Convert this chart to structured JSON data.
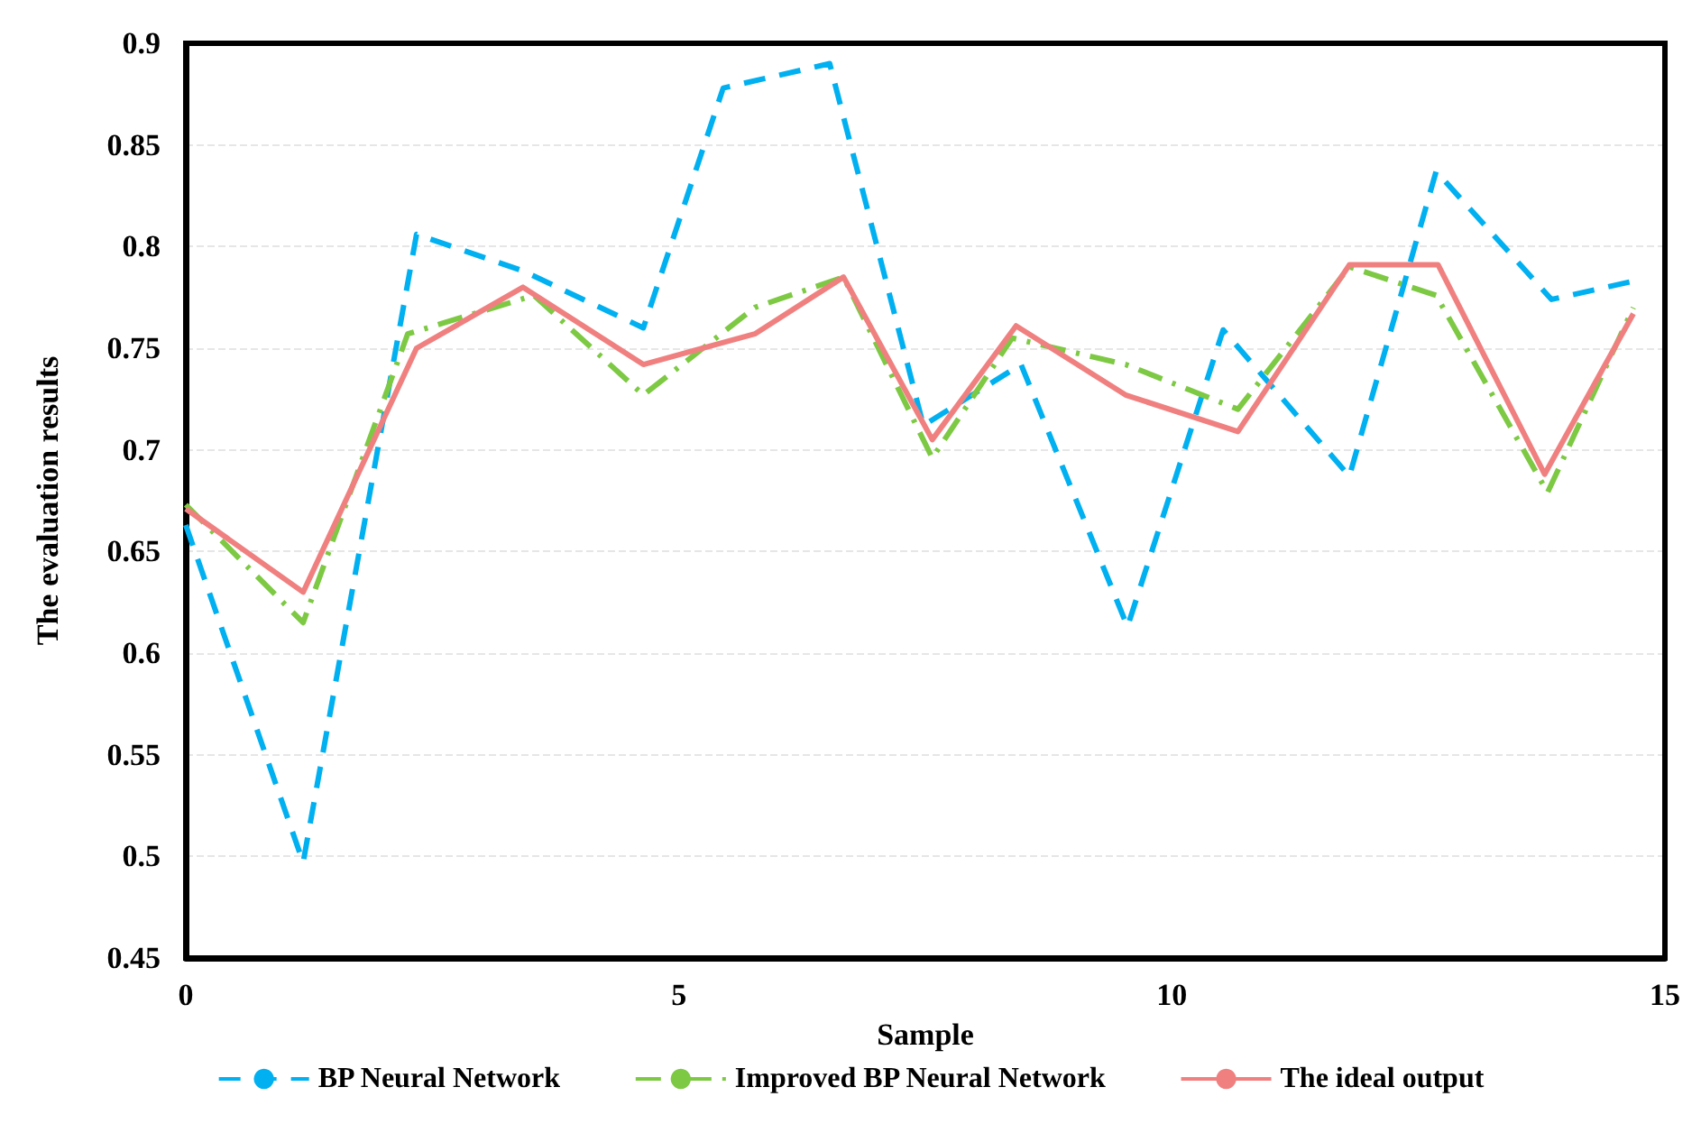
{
  "chart_data": {
    "type": "line",
    "xlabel": "Sample",
    "ylabel": "The evaluation results",
    "xlim": [
      0,
      15
    ],
    "xticks": [
      0,
      5,
      10,
      15
    ],
    "ylim": [
      0.45,
      0.9
    ],
    "yticks": [
      0.45,
      0.5,
      0.55,
      0.6,
      0.65,
      0.7,
      0.75,
      0.8,
      0.85,
      0.9
    ],
    "grid": "y",
    "legend": "bottom",
    "marker": "none",
    "series": [
      {
        "name": "BP Neural Network",
        "color": "#00b0f0",
        "line_style": "dashed",
        "x": [
          0,
          1.19,
          2.34,
          3.42,
          4.64,
          5.45,
          6.53,
          7.48,
          8.47,
          9.55,
          10.52,
          11.8,
          12.68,
          13.85,
          14.68
        ],
        "values": [
          0.663,
          0.497,
          0.806,
          0.788,
          0.76,
          0.878,
          0.89,
          0.712,
          0.742,
          0.613,
          0.759,
          0.687,
          0.837,
          0.774,
          0.783
        ]
      },
      {
        "name": "Improved BP Neural Network",
        "color": "#7dc943",
        "line_style": "dashdot",
        "x": [
          0,
          1.19,
          2.25,
          3.53,
          4.64,
          5.77,
          6.67,
          7.57,
          8.38,
          9.53,
          10.67,
          11.8,
          12.68,
          13.81,
          14.68
        ],
        "values": [
          0.673,
          0.615,
          0.757,
          0.776,
          0.727,
          0.77,
          0.785,
          0.696,
          0.755,
          0.742,
          0.72,
          0.79,
          0.776,
          0.679,
          0.77
        ]
      },
      {
        "name": "The ideal output",
        "color": "#f08080",
        "line_style": "solid",
        "x": [
          0,
          1.19,
          2.34,
          3.42,
          4.64,
          5.77,
          6.67,
          7.57,
          8.42,
          9.53,
          10.67,
          11.8,
          12.7,
          13.78,
          14.68
        ],
        "values": [
          0.671,
          0.63,
          0.75,
          0.78,
          0.742,
          0.757,
          0.785,
          0.705,
          0.761,
          0.727,
          0.709,
          0.791,
          0.791,
          0.688,
          0.767
        ]
      }
    ]
  }
}
